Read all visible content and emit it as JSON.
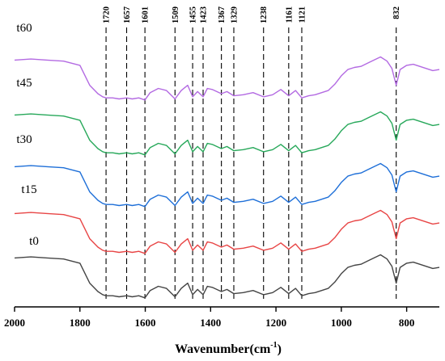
{
  "chart_data": {
    "type": "line",
    "xlabel": "Wavenumber(cm",
    "xlabel_sup": "-1",
    "xlabel_close": ")",
    "xlim": [
      2000,
      700
    ],
    "x_reversed": true,
    "x_ticks": [
      "2000",
      "1800",
      "1600",
      "1400",
      "1200",
      "1000",
      "800"
    ],
    "y_axis_visible": false,
    "grid": false,
    "peak_markers": [
      "1720",
      "1657",
      "1601",
      "1509",
      "1455",
      "1423",
      "1367",
      "1329",
      "1238",
      "1161",
      "1121",
      "832"
    ],
    "x": [
      2000,
      1950,
      1900,
      1850,
      1800,
      1770,
      1745,
      1730,
      1720,
      1700,
      1680,
      1657,
      1640,
      1620,
      1601,
      1585,
      1560,
      1535,
      1509,
      1490,
      1470,
      1455,
      1440,
      1423,
      1410,
      1395,
      1367,
      1350,
      1329,
      1300,
      1270,
      1238,
      1210,
      1185,
      1161,
      1140,
      1121,
      1100,
      1080,
      1060,
      1040,
      1020,
      1000,
      980,
      960,
      940,
      920,
      900,
      880,
      860,
      845,
      832,
      820,
      800,
      780,
      760,
      740,
      720,
      700
    ],
    "series": [
      {
        "name": "t0",
        "color": "#444444",
        "values": [
          0.6,
          0.65,
          0.6,
          0.55,
          0.35,
          -0.6,
          -1.0,
          -1.15,
          -1.2,
          -1.2,
          -1.25,
          -1.2,
          -1.25,
          -1.2,
          -1.3,
          -0.95,
          -0.75,
          -0.85,
          -1.25,
          -0.85,
          -0.6,
          -1.15,
          -0.9,
          -1.15,
          -0.75,
          -0.8,
          -1.0,
          -0.9,
          -1.1,
          -1.05,
          -0.95,
          -1.15,
          -1.05,
          -0.8,
          -1.1,
          -0.85,
          -1.2,
          -1.1,
          -1.05,
          -0.95,
          -0.85,
          -0.55,
          -0.15,
          0.15,
          0.25,
          0.3,
          0.45,
          0.6,
          0.75,
          0.55,
          0.2,
          -0.6,
          0.15,
          0.35,
          0.4,
          0.3,
          0.2,
          0.1,
          0.15
        ]
      },
      {
        "name": "t15",
        "color": "#e84545",
        "values": [
          0.6,
          0.65,
          0.6,
          0.55,
          0.35,
          -0.6,
          -1.0,
          -1.15,
          -1.2,
          -1.2,
          -1.25,
          -1.2,
          -1.25,
          -1.2,
          -1.3,
          -0.95,
          -0.75,
          -0.85,
          -1.25,
          -0.85,
          -0.6,
          -1.15,
          -0.9,
          -1.15,
          -0.75,
          -0.8,
          -1.0,
          -0.9,
          -1.1,
          -1.05,
          -0.95,
          -1.15,
          -1.05,
          -0.8,
          -1.1,
          -0.85,
          -1.2,
          -1.1,
          -1.05,
          -0.95,
          -0.85,
          -0.55,
          -0.15,
          0.15,
          0.25,
          0.3,
          0.45,
          0.6,
          0.75,
          0.55,
          0.2,
          -0.6,
          0.15,
          0.35,
          0.4,
          0.3,
          0.2,
          0.1,
          0.15
        ]
      },
      {
        "name": "t30",
        "color": "#1e6fd8",
        "values": [
          0.6,
          0.65,
          0.6,
          0.55,
          0.35,
          -0.6,
          -1.0,
          -1.15,
          -1.2,
          -1.2,
          -1.25,
          -1.2,
          -1.25,
          -1.2,
          -1.3,
          -0.95,
          -0.75,
          -0.85,
          -1.25,
          -0.85,
          -0.6,
          -1.15,
          -0.9,
          -1.15,
          -0.75,
          -0.8,
          -1.0,
          -0.9,
          -1.1,
          -1.05,
          -0.95,
          -1.15,
          -1.05,
          -0.8,
          -1.1,
          -0.85,
          -1.2,
          -1.1,
          -1.05,
          -0.95,
          -0.85,
          -0.55,
          -0.15,
          0.15,
          0.25,
          0.3,
          0.45,
          0.6,
          0.75,
          0.55,
          0.2,
          -0.6,
          0.15,
          0.35,
          0.4,
          0.3,
          0.2,
          0.1,
          0.15
        ]
      },
      {
        "name": "t45",
        "color": "#27a85a",
        "values": [
          0.6,
          0.65,
          0.6,
          0.55,
          0.35,
          -0.6,
          -1.0,
          -1.15,
          -1.2,
          -1.2,
          -1.25,
          -1.2,
          -1.25,
          -1.2,
          -1.3,
          -0.95,
          -0.75,
          -0.85,
          -1.25,
          -0.85,
          -0.6,
          -1.15,
          -0.9,
          -1.15,
          -0.75,
          -0.8,
          -1.0,
          -0.9,
          -1.1,
          -1.05,
          -0.95,
          -1.15,
          -1.05,
          -0.8,
          -1.1,
          -0.85,
          -1.2,
          -1.1,
          -1.05,
          -0.95,
          -0.85,
          -0.55,
          -0.15,
          0.15,
          0.25,
          0.3,
          0.45,
          0.6,
          0.75,
          0.55,
          0.2,
          -0.6,
          0.15,
          0.35,
          0.4,
          0.3,
          0.2,
          0.1,
          0.15
        ]
      },
      {
        "name": "t60",
        "color": "#b36ae2",
        "values": [
          0.6,
          0.65,
          0.6,
          0.55,
          0.35,
          -0.6,
          -1.0,
          -1.15,
          -1.2,
          -1.2,
          -1.25,
          -1.2,
          -1.25,
          -1.2,
          -1.3,
          -0.95,
          -0.75,
          -0.85,
          -1.25,
          -0.85,
          -0.6,
          -1.15,
          -0.9,
          -1.15,
          -0.75,
          -0.8,
          -1.0,
          -0.9,
          -1.1,
          -1.05,
          -0.95,
          -1.15,
          -1.05,
          -0.8,
          -1.1,
          -0.85,
          -1.2,
          -1.1,
          -1.05,
          -0.95,
          -0.85,
          -0.55,
          -0.15,
          0.15,
          0.25,
          0.3,
          0.45,
          0.6,
          0.75,
          0.55,
          0.2,
          -0.6,
          0.15,
          0.35,
          0.4,
          0.3,
          0.2,
          0.1,
          0.15
        ]
      }
    ]
  }
}
